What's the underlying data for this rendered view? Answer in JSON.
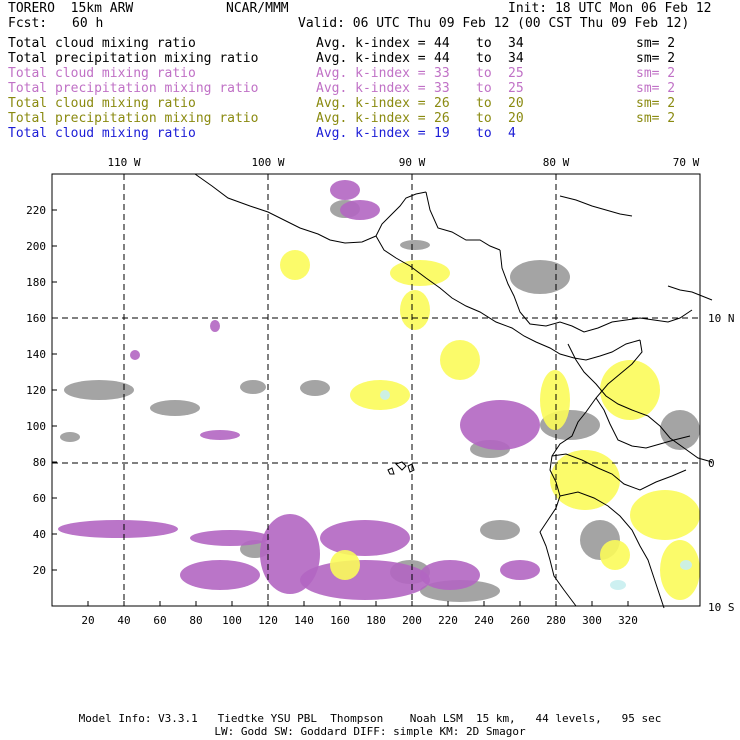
{
  "header": {
    "model": "TORERO  15km ARW",
    "org": "NCAR/MMM",
    "init": "Init: 18 UTC Mon 06 Feb 12",
    "fcst_label": "Fcst:",
    "fcst_value": "60 h",
    "valid": "Valid: 06 UTC Thu 09 Feb 12 (00 CST Thu 09 Feb 12)"
  },
  "fields": [
    {
      "name": "Total cloud mixing ratio",
      "k_label": "Avg. k-index =",
      "k_from": "44",
      "to": "to",
      "k_to": "34",
      "sm": "sm= 2",
      "color": "#000000"
    },
    {
      "name": "Total precipitation mixing ratio",
      "k_label": "Avg. k-index =",
      "k_from": "44",
      "to": "to",
      "k_to": "34",
      "sm": "sm= 2",
      "color": "#000000"
    },
    {
      "name": "Total cloud mixing ratio",
      "k_label": "Avg. k-index =",
      "k_from": "33",
      "to": "to",
      "k_to": "25",
      "sm": "sm= 2",
      "color": "#c071c6"
    },
    {
      "name": "Total precipitation mixing ratio",
      "k_label": "Avg. k-index =",
      "k_from": "33",
      "to": "to",
      "k_to": "25",
      "sm": "sm= 2",
      "color": "#c071c6"
    },
    {
      "name": "Total cloud mixing ratio",
      "k_label": "Avg. k-index =",
      "k_from": "26",
      "to": "to",
      "k_to": "20",
      "sm": "sm= 2",
      "color": "#8a8a10"
    },
    {
      "name": "Total precipitation mixing ratio",
      "k_label": "Avg. k-index =",
      "k_from": "26",
      "to": "to",
      "k_to": "20",
      "sm": "sm= 2",
      "color": "#8a8a10"
    },
    {
      "name": "Total cloud mixing ratio",
      "k_label": "Avg. k-index =",
      "k_from": "19",
      "to": "to",
      "k_to": "4",
      "sm": "",
      "color": "#1c1cd6"
    }
  ],
  "map": {
    "lon_labels": [
      "110 W",
      "100 W",
      "90 W",
      "80 W",
      "70 W"
    ],
    "lat_labels": [
      "10 N",
      "0",
      "10 S"
    ],
    "x_ticks": [
      "20",
      "40",
      "60",
      "80",
      "100",
      "120",
      "140",
      "160",
      "180",
      "200",
      "220",
      "240",
      "260",
      "280",
      "300",
      "320"
    ],
    "y_ticks": [
      "20",
      "40",
      "60",
      "80",
      "100",
      "120",
      "140",
      "160",
      "180",
      "200",
      "220"
    ],
    "colors": {
      "gray": "#9a9a9a",
      "magenta": "#b266c2",
      "yellow": "#fbfb5a",
      "cyan": "#c8eef0",
      "coast": "#000000"
    }
  },
  "footer": {
    "line1": "Model Info: V3.3.1   Tiedtke YSU PBL  Thompson    Noah LSM  15 km,   44 levels,   95 sec",
    "line2": "LW: Godd SW: Goddard DIFF: simple KM: 2D Smagor"
  }
}
